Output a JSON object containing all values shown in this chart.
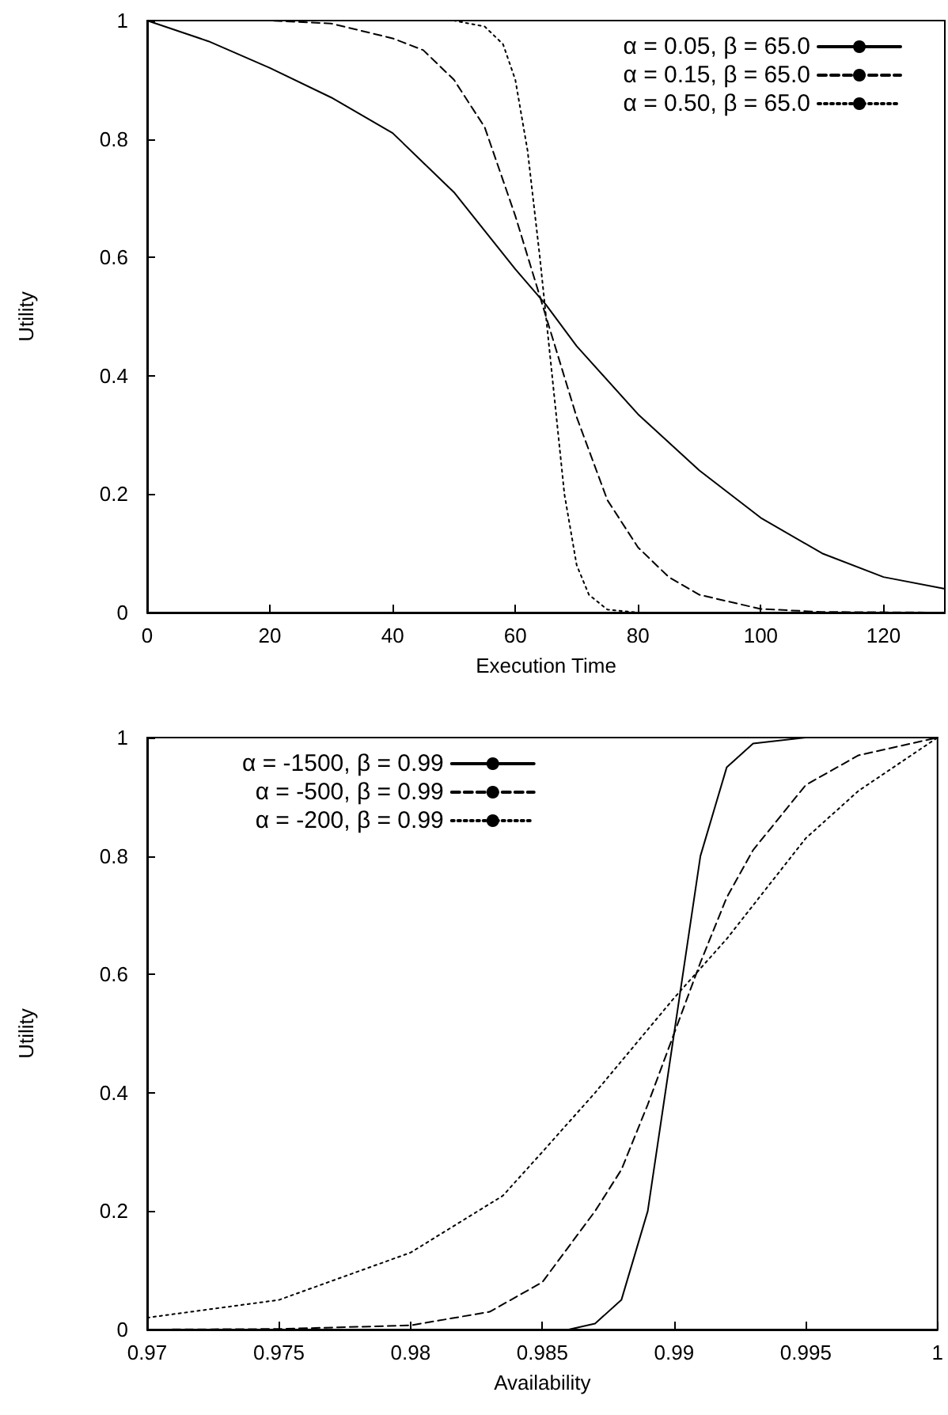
{
  "chart_data": [
    {
      "type": "line",
      "xlabel": "Execution Time",
      "ylabel": "Utility",
      "xlim": [
        0,
        130
      ],
      "ylim": [
        0,
        1
      ],
      "xticks": [
        0,
        20,
        40,
        60,
        80,
        100,
        120
      ],
      "yticks": [
        0,
        0.2,
        0.4,
        0.6,
        0.8,
        1
      ],
      "grid": false,
      "legend": "top right",
      "marker": "none",
      "series": [
        {
          "name": "α = 0.05, β = 65.0",
          "color": "#000000",
          "line_style": "solid",
          "x": [
            0,
            10,
            20,
            30,
            40,
            50,
            60,
            65,
            70,
            80,
            90,
            100,
            110,
            120,
            130
          ],
          "values": [
            1,
            0.965,
            0.92,
            0.87,
            0.81,
            0.71,
            0.58,
            0.52,
            0.45,
            0.335,
            0.24,
            0.16,
            0.1,
            0.06,
            0.04
          ]
        },
        {
          "name": "α = 0.15, β = 65.0",
          "color": "#000000",
          "line_style": "dashed",
          "x": [
            0,
            20,
            30,
            40,
            45,
            50,
            55,
            60,
            65,
            70,
            75,
            80,
            85,
            90,
            100,
            110,
            130
          ],
          "values": [
            1,
            1,
            0.995,
            0.97,
            0.95,
            0.9,
            0.82,
            0.67,
            0.5,
            0.33,
            0.19,
            0.11,
            0.06,
            0.03,
            0.006,
            0.001,
            0
          ]
        },
        {
          "name": "α = 0.50, β = 65.0",
          "color": "#000000",
          "line_style": "dotted",
          "x": [
            20,
            50,
            55,
            58,
            60,
            62,
            64,
            65,
            66,
            68,
            70,
            72,
            75,
            80,
            130
          ],
          "values": [
            1,
            1,
            0.99,
            0.96,
            0.9,
            0.78,
            0.6,
            0.5,
            0.4,
            0.2,
            0.08,
            0.03,
            0.005,
            0,
            0
          ]
        }
      ]
    },
    {
      "type": "line",
      "xlabel": "Availability",
      "ylabel": "Utility",
      "xlim": [
        0.97,
        1
      ],
      "ylim": [
        0,
        1
      ],
      "xticks": [
        0.97,
        0.975,
        0.98,
        0.985,
        0.99,
        0.995,
        1
      ],
      "yticks": [
        0,
        0.2,
        0.4,
        0.6,
        0.8,
        1
      ],
      "grid": false,
      "legend": "top left",
      "marker": "none",
      "series": [
        {
          "name": "α = -1500, β = 0.99",
          "color": "#000000",
          "line_style": "solid",
          "x": [
            0.97,
            0.986,
            0.987,
            0.988,
            0.989,
            0.99,
            0.991,
            0.992,
            0.993,
            0.995,
            1
          ],
          "values": [
            0,
            0,
            0.01,
            0.05,
            0.2,
            0.5,
            0.8,
            0.95,
            0.99,
            1,
            1
          ]
        },
        {
          "name": "α = -500, β = 0.99",
          "color": "#000000",
          "line_style": "dashed",
          "x": [
            0.97,
            0.975,
            0.98,
            0.983,
            0.985,
            0.987,
            0.988,
            0.989,
            0.99,
            0.991,
            0.992,
            0.993,
            0.995,
            0.997,
            1
          ],
          "values": [
            0,
            0.001,
            0.007,
            0.03,
            0.08,
            0.2,
            0.27,
            0.38,
            0.5,
            0.62,
            0.73,
            0.81,
            0.92,
            0.97,
            1
          ]
        },
        {
          "name": "α = -200, β = 0.99",
          "color": "#000000",
          "line_style": "dotted",
          "x": [
            0.97,
            0.975,
            0.98,
            0.9835,
            0.985,
            0.987,
            0.99,
            0.992,
            0.995,
            0.997,
            1
          ],
          "values": [
            0.02,
            0.05,
            0.13,
            0.226,
            0.3,
            0.4,
            0.56,
            0.66,
            0.83,
            0.91,
            1
          ]
        }
      ]
    }
  ]
}
